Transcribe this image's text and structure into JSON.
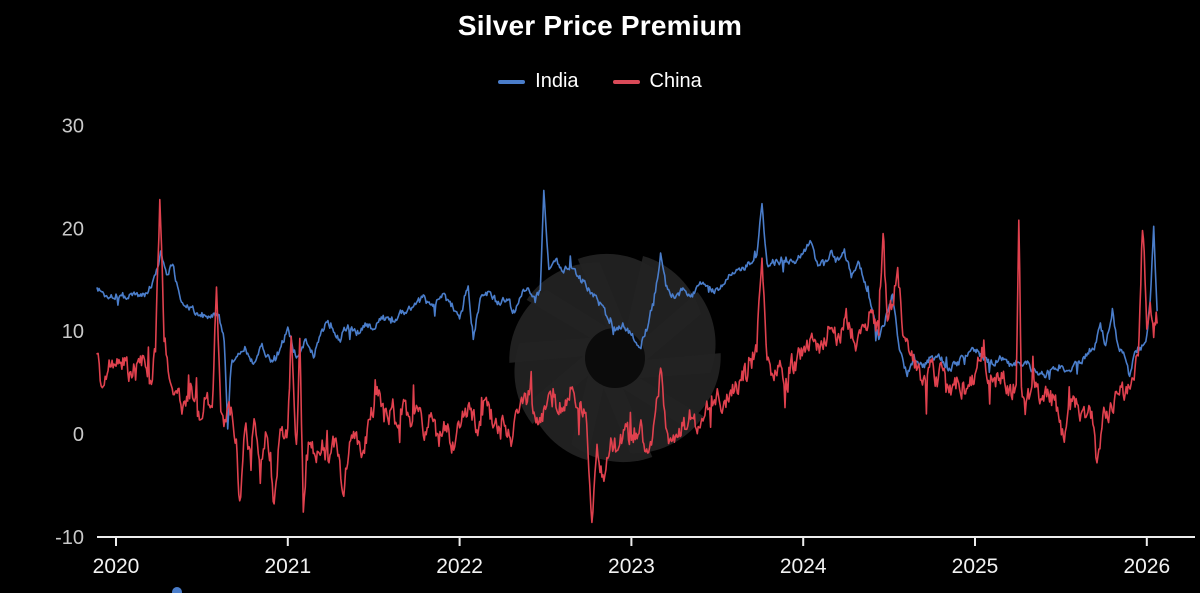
{
  "title": "Silver Price Premium",
  "legend": [
    {
      "label": "India",
      "color": "#4a7dca"
    },
    {
      "label": "China",
      "color": "#d94a58"
    }
  ],
  "watermark": {
    "name": "aperture-spiral-logo",
    "color": "#232323",
    "center_color": "#0b0b0b"
  },
  "misc": {
    "bottom_dot_color": "#4a7dca"
  },
  "chart_data": {
    "type": "line",
    "title": "Silver Price Premium",
    "xlabel": "",
    "ylabel": "",
    "grid": false,
    "legend_position": "top",
    "background": "#000000",
    "axis_color": "#ededed",
    "x_tick_label_color": "#f2f2f2",
    "y_tick_label_color": "#c9c9c9",
    "x_ticks": [
      2020,
      2021,
      2022,
      2023,
      2024,
      2025,
      2026
    ],
    "y_ticks": [
      30,
      20,
      10,
      0,
      -10
    ],
    "xlim": [
      2019.89,
      2026.28
    ],
    "ylim": [
      -10,
      30
    ],
    "series": [
      {
        "name": "India",
        "color": "#4a7dca",
        "noise": 0.42,
        "points": [
          [
            2019.89,
            14.2
          ],
          [
            2019.95,
            13.3
          ],
          [
            2020.0,
            13.6
          ],
          [
            2020.05,
            13.4
          ],
          [
            2020.1,
            13.7
          ],
          [
            2020.15,
            13.4
          ],
          [
            2020.2,
            14.2
          ],
          [
            2020.23,
            15.5
          ],
          [
            2020.26,
            17.8
          ],
          [
            2020.3,
            15.5
          ],
          [
            2020.33,
            16.5
          ],
          [
            2020.37,
            13.5
          ],
          [
            2020.42,
            12.3
          ],
          [
            2020.5,
            11.8
          ],
          [
            2020.55,
            11.3
          ],
          [
            2020.6,
            11.6
          ],
          [
            2020.63,
            9.0
          ],
          [
            2020.65,
            0.5
          ],
          [
            2020.67,
            6.5
          ],
          [
            2020.7,
            7.5
          ],
          [
            2020.75,
            8.5
          ],
          [
            2020.8,
            6.8
          ],
          [
            2020.85,
            8.8
          ],
          [
            2020.9,
            7.0
          ],
          [
            2020.95,
            8.0
          ],
          [
            2021.0,
            10.4
          ],
          [
            2021.05,
            7.4
          ],
          [
            2021.1,
            9.2
          ],
          [
            2021.15,
            7.4
          ],
          [
            2021.2,
            10.2
          ],
          [
            2021.25,
            10.8
          ],
          [
            2021.3,
            9.2
          ],
          [
            2021.35,
            10.6
          ],
          [
            2021.4,
            9.6
          ],
          [
            2021.45,
            10.8
          ],
          [
            2021.5,
            10.2
          ],
          [
            2021.55,
            11.2
          ],
          [
            2021.6,
            10.8
          ],
          [
            2021.65,
            11.8
          ],
          [
            2021.7,
            12.2
          ],
          [
            2021.75,
            12.8
          ],
          [
            2021.8,
            13.2
          ],
          [
            2021.85,
            12.6
          ],
          [
            2021.9,
            13.6
          ],
          [
            2021.95,
            12.4
          ],
          [
            2022.0,
            11.2
          ],
          [
            2022.05,
            14.4
          ],
          [
            2022.08,
            9.2
          ],
          [
            2022.12,
            13.2
          ],
          [
            2022.18,
            13.8
          ],
          [
            2022.22,
            12.6
          ],
          [
            2022.28,
            13.0
          ],
          [
            2022.32,
            11.8
          ],
          [
            2022.36,
            13.4
          ],
          [
            2022.4,
            14.2
          ],
          [
            2022.44,
            12.8
          ],
          [
            2022.47,
            14.0
          ],
          [
            2022.49,
            23.7
          ],
          [
            2022.52,
            16.0
          ],
          [
            2022.56,
            17.0
          ],
          [
            2022.6,
            15.8
          ],
          [
            2022.65,
            16.2
          ],
          [
            2022.7,
            15.4
          ],
          [
            2022.75,
            14.2
          ],
          [
            2022.8,
            13.2
          ],
          [
            2022.85,
            11.6
          ],
          [
            2022.9,
            10.4
          ],
          [
            2022.95,
            10.8
          ],
          [
            2023.0,
            9.6
          ],
          [
            2023.05,
            8.4
          ],
          [
            2023.1,
            10.8
          ],
          [
            2023.14,
            13.8
          ],
          [
            2023.17,
            17.6
          ],
          [
            2023.2,
            14.4
          ],
          [
            2023.25,
            13.2
          ],
          [
            2023.3,
            14.2
          ],
          [
            2023.35,
            13.6
          ],
          [
            2023.4,
            14.8
          ],
          [
            2023.45,
            13.8
          ],
          [
            2023.5,
            14.2
          ],
          [
            2023.55,
            15.0
          ],
          [
            2023.6,
            15.6
          ],
          [
            2023.65,
            16.2
          ],
          [
            2023.7,
            16.6
          ],
          [
            2023.73,
            17.4
          ],
          [
            2023.76,
            22.4
          ],
          [
            2023.79,
            16.6
          ],
          [
            2023.85,
            16.8
          ],
          [
            2023.9,
            17.2
          ],
          [
            2023.95,
            16.6
          ],
          [
            2024.0,
            17.6
          ],
          [
            2024.04,
            18.8
          ],
          [
            2024.08,
            16.8
          ],
          [
            2024.12,
            16.4
          ],
          [
            2024.16,
            17.8
          ],
          [
            2024.2,
            17.2
          ],
          [
            2024.24,
            18.0
          ],
          [
            2024.28,
            15.2
          ],
          [
            2024.32,
            16.8
          ],
          [
            2024.36,
            14.8
          ],
          [
            2024.4,
            12.2
          ],
          [
            2024.44,
            9.2
          ],
          [
            2024.48,
            11.4
          ],
          [
            2024.52,
            13.6
          ],
          [
            2024.56,
            8.2
          ],
          [
            2024.6,
            6.0
          ],
          [
            2024.65,
            7.2
          ],
          [
            2024.7,
            6.8
          ],
          [
            2024.75,
            7.6
          ],
          [
            2024.8,
            7.2
          ],
          [
            2024.85,
            6.4
          ],
          [
            2024.9,
            7.0
          ],
          [
            2024.95,
            7.6
          ],
          [
            2025.0,
            8.2
          ],
          [
            2025.05,
            7.2
          ],
          [
            2025.1,
            6.8
          ],
          [
            2025.15,
            7.4
          ],
          [
            2025.2,
            6.6
          ],
          [
            2025.25,
            7.0
          ],
          [
            2025.3,
            6.8
          ],
          [
            2025.35,
            6.2
          ],
          [
            2025.4,
            5.8
          ],
          [
            2025.45,
            6.4
          ],
          [
            2025.5,
            6.6
          ],
          [
            2025.55,
            6.2
          ],
          [
            2025.6,
            7.0
          ],
          [
            2025.65,
            7.6
          ],
          [
            2025.7,
            8.8
          ],
          [
            2025.73,
            10.8
          ],
          [
            2025.76,
            8.6
          ],
          [
            2025.8,
            12.2
          ],
          [
            2025.83,
            8.8
          ],
          [
            2025.87,
            7.6
          ],
          [
            2025.9,
            5.6
          ],
          [
            2025.93,
            8.0
          ],
          [
            2025.96,
            8.4
          ],
          [
            2026.0,
            9.6
          ],
          [
            2026.02,
            13.0
          ],
          [
            2026.04,
            20.2
          ],
          [
            2026.06,
            12.0
          ]
        ]
      },
      {
        "name": "China",
        "color": "#e0414e",
        "noise": 1.2,
        "points": [
          [
            2019.89,
            7.8
          ],
          [
            2019.92,
            4.5
          ],
          [
            2019.96,
            7.2
          ],
          [
            2020.0,
            6.6
          ],
          [
            2020.04,
            7.4
          ],
          [
            2020.08,
            6.0
          ],
          [
            2020.12,
            6.8
          ],
          [
            2020.16,
            7.6
          ],
          [
            2020.2,
            5.2
          ],
          [
            2020.23,
            8.0
          ],
          [
            2020.255,
            22.8
          ],
          [
            2020.28,
            9.0
          ],
          [
            2020.31,
            5.4
          ],
          [
            2020.35,
            4.2
          ],
          [
            2020.4,
            3.2
          ],
          [
            2020.44,
            4.6
          ],
          [
            2020.48,
            2.2
          ],
          [
            2020.52,
            3.4
          ],
          [
            2020.56,
            2.6
          ],
          [
            2020.585,
            14.3
          ],
          [
            2020.61,
            2.2
          ],
          [
            2020.64,
            1.2
          ],
          [
            2020.67,
            2.6
          ],
          [
            2020.7,
            -0.5
          ],
          [
            2020.72,
            -6.5
          ],
          [
            2020.75,
            0.5
          ],
          [
            2020.78,
            -1.5
          ],
          [
            2020.81,
            1.0
          ],
          [
            2020.84,
            -4.8
          ],
          [
            2020.87,
            0.2
          ],
          [
            2020.9,
            -1.8
          ],
          [
            2020.92,
            -6.8
          ],
          [
            2020.95,
            -0.6
          ],
          [
            2021.0,
            0.6
          ],
          [
            2021.02,
            9.5
          ],
          [
            2021.05,
            -1.0
          ],
          [
            2021.07,
            9.3
          ],
          [
            2021.09,
            -7.6
          ],
          [
            2021.12,
            -0.8
          ],
          [
            2021.16,
            -2.2
          ],
          [
            2021.2,
            -0.6
          ],
          [
            2021.24,
            -2.8
          ],
          [
            2021.28,
            -0.4
          ],
          [
            2021.32,
            -5.8
          ],
          [
            2021.36,
            -0.8
          ],
          [
            2021.4,
            0.2
          ],
          [
            2021.44,
            -1.6
          ],
          [
            2021.48,
            1.4
          ],
          [
            2021.52,
            4.6
          ],
          [
            2021.56,
            1.2
          ],
          [
            2021.6,
            2.4
          ],
          [
            2021.64,
            0.6
          ],
          [
            2021.68,
            3.2
          ],
          [
            2021.72,
            0.8
          ],
          [
            2021.76,
            2.2
          ],
          [
            2021.8,
            0.2
          ],
          [
            2021.84,
            1.6
          ],
          [
            2021.88,
            -1.2
          ],
          [
            2021.92,
            0.8
          ],
          [
            2021.96,
            -0.8
          ],
          [
            2022.0,
            0.6
          ],
          [
            2022.05,
            2.8
          ],
          [
            2022.1,
            0.4
          ],
          [
            2022.15,
            3.4
          ],
          [
            2022.2,
            0.8
          ],
          [
            2022.25,
            1.8
          ],
          [
            2022.3,
            -1.2
          ],
          [
            2022.35,
            2.6
          ],
          [
            2022.4,
            4.2
          ],
          [
            2022.45,
            1.6
          ],
          [
            2022.5,
            2.4
          ],
          [
            2022.55,
            3.6
          ],
          [
            2022.6,
            2.2
          ],
          [
            2022.65,
            4.4
          ],
          [
            2022.7,
            3.0
          ],
          [
            2022.74,
            1.0
          ],
          [
            2022.77,
            -8.6
          ],
          [
            2022.8,
            -1.0
          ],
          [
            2022.84,
            -4.6
          ],
          [
            2022.88,
            -0.4
          ],
          [
            2022.92,
            -1.6
          ],
          [
            2022.96,
            0.4
          ],
          [
            2023.0,
            -0.6
          ],
          [
            2023.05,
            0.8
          ],
          [
            2023.1,
            -1.8
          ],
          [
            2023.14,
            2.2
          ],
          [
            2023.17,
            6.4
          ],
          [
            2023.2,
            0.6
          ],
          [
            2023.25,
            -0.8
          ],
          [
            2023.3,
            0.8
          ],
          [
            2023.35,
            1.6
          ],
          [
            2023.4,
            0.6
          ],
          [
            2023.45,
            2.4
          ],
          [
            2023.5,
            4.4
          ],
          [
            2023.55,
            2.6
          ],
          [
            2023.6,
            4.2
          ],
          [
            2023.65,
            5.2
          ],
          [
            2023.7,
            6.4
          ],
          [
            2023.73,
            8.0
          ],
          [
            2023.76,
            17.1
          ],
          [
            2023.79,
            7.2
          ],
          [
            2023.83,
            5.2
          ],
          [
            2023.87,
            6.6
          ],
          [
            2023.9,
            5.4
          ],
          [
            2023.95,
            7.0
          ],
          [
            2024.0,
            8.2
          ],
          [
            2024.05,
            9.8
          ],
          [
            2024.1,
            8.6
          ],
          [
            2024.15,
            10.4
          ],
          [
            2024.2,
            9.4
          ],
          [
            2024.25,
            12.2
          ],
          [
            2024.3,
            8.8
          ],
          [
            2024.35,
            10.6
          ],
          [
            2024.4,
            11.8
          ],
          [
            2024.44,
            9.6
          ],
          [
            2024.465,
            19.5
          ],
          [
            2024.49,
            11.0
          ],
          [
            2024.52,
            12.6
          ],
          [
            2024.55,
            16.2
          ],
          [
            2024.58,
            9.6
          ],
          [
            2024.62,
            7.8
          ],
          [
            2024.66,
            6.2
          ],
          [
            2024.7,
            5.4
          ],
          [
            2024.74,
            7.2
          ],
          [
            2024.78,
            4.6
          ],
          [
            2024.82,
            6.4
          ],
          [
            2024.86,
            3.8
          ],
          [
            2024.9,
            5.2
          ],
          [
            2024.95,
            4.4
          ],
          [
            2025.0,
            5.8
          ],
          [
            2025.04,
            8.4
          ],
          [
            2025.08,
            5.2
          ],
          [
            2025.12,
            4.6
          ],
          [
            2025.16,
            5.4
          ],
          [
            2025.2,
            4.4
          ],
          [
            2025.24,
            4.8
          ],
          [
            2025.255,
            20.8
          ],
          [
            2025.27,
            4.6
          ],
          [
            2025.32,
            3.8
          ],
          [
            2025.36,
            4.6
          ],
          [
            2025.4,
            3.2
          ],
          [
            2025.44,
            4.2
          ],
          [
            2025.48,
            2.6
          ],
          [
            2025.52,
            -0.8
          ],
          [
            2025.56,
            3.4
          ],
          [
            2025.6,
            2.8
          ],
          [
            2025.64,
            1.6
          ],
          [
            2025.68,
            2.2
          ],
          [
            2025.71,
            -2.8
          ],
          [
            2025.75,
            2.6
          ],
          [
            2025.8,
            2.2
          ],
          [
            2025.84,
            3.8
          ],
          [
            2025.88,
            4.6
          ],
          [
            2025.92,
            5.4
          ],
          [
            2025.95,
            7.6
          ],
          [
            2025.975,
            19.8
          ],
          [
            2026.0,
            10.2
          ],
          [
            2026.02,
            12.8
          ],
          [
            2026.04,
            9.4
          ],
          [
            2026.06,
            10.8
          ]
        ]
      }
    ]
  }
}
